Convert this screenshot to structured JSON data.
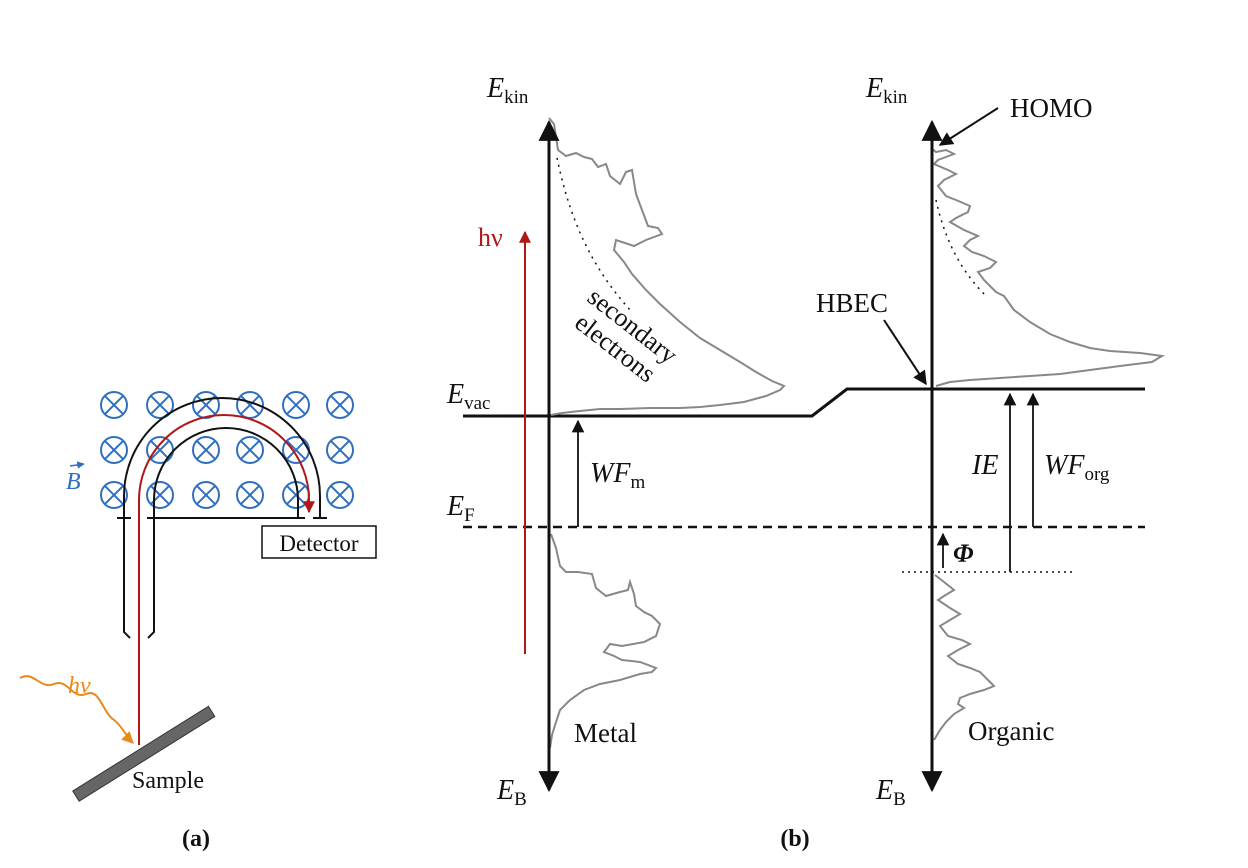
{
  "panel_a": {
    "label": "(a)",
    "field_label": "B",
    "photon_label": "hν",
    "detector_label": "Detector",
    "sample_label": "Sample"
  },
  "panel_b": {
    "label": "(b)",
    "metal": {
      "axis_top": {
        "main": "E",
        "sub": "kin"
      },
      "axis_bottom": {
        "main": "E",
        "sub": "B"
      },
      "photon_label": "hν",
      "secondary_line1": "secondary",
      "secondary_line2": "electrons",
      "evac": {
        "main": "E",
        "sub": "vac"
      },
      "ef": {
        "main": "E",
        "sub": "F"
      },
      "wf": {
        "main": "WF",
        "sub": "m"
      },
      "material_label": "Metal"
    },
    "organic": {
      "axis_top": {
        "main": "E",
        "sub": "kin"
      },
      "axis_bottom": {
        "main": "E",
        "sub": "B"
      },
      "homo_label": "HOMO",
      "hbec_label": "HBEC",
      "ie_label": "IE",
      "wf": {
        "main": "WF",
        "sub": "org"
      },
      "phi_label": "Φ",
      "material_label": "Organic"
    }
  },
  "colors": {
    "line": "#111111",
    "spectrum": "#888888",
    "photon_red": "#b01818",
    "photon_orange": "#e8891c",
    "field_blue": "#2f6fc0",
    "sample_gray": "#666666"
  }
}
